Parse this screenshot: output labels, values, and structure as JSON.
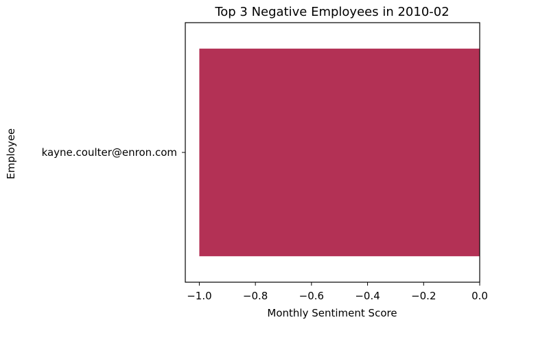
{
  "chart_data": {
    "type": "bar",
    "orientation": "horizontal",
    "title": "Top 3 Negative Employees in 2010-02",
    "xlabel": "Monthly Sentiment Score",
    "ylabel": "Employee",
    "categories": [
      "kayne.coulter@enron.com"
    ],
    "values": [
      -1.0
    ],
    "xlim": [
      -1.05,
      0.0
    ],
    "xticks": [
      -1.0,
      -0.8,
      -0.6,
      -0.4,
      -0.2,
      0.0
    ],
    "xtick_labels": [
      "−1.0",
      "−0.8",
      "−0.6",
      "−0.4",
      "−0.2",
      "0.0"
    ],
    "bar_color": "#b33155",
    "grid": false,
    "legend": "none"
  }
}
